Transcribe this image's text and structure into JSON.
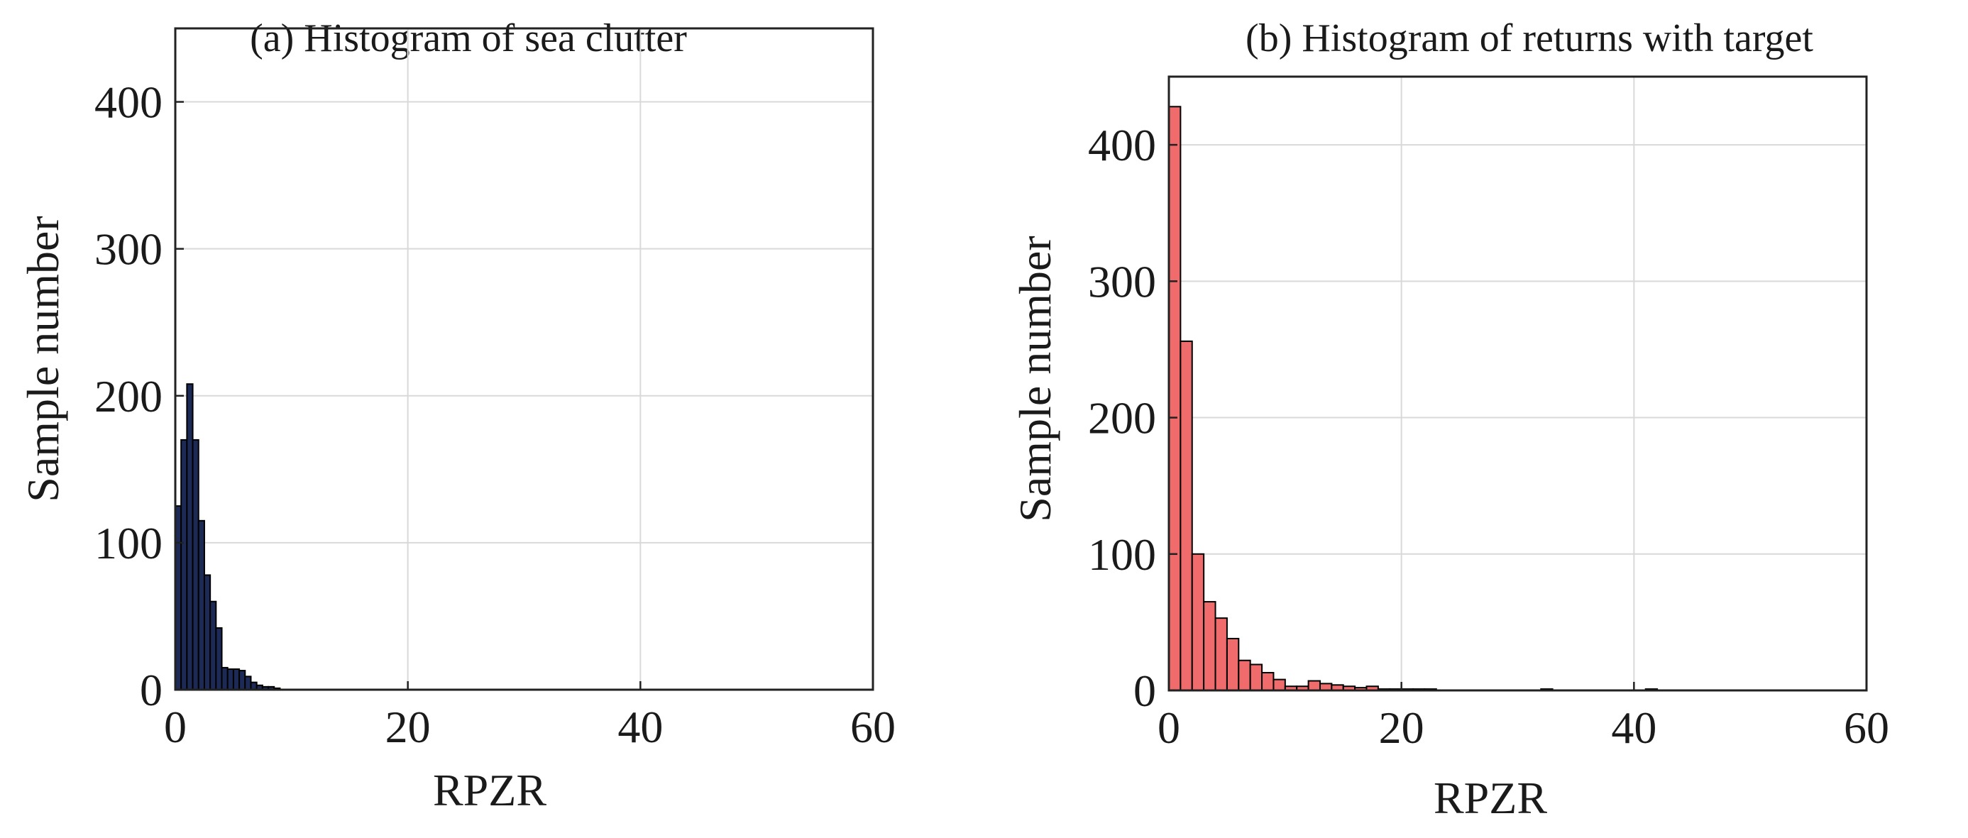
{
  "chart_data": [
    {
      "type": "bar",
      "title": "(a) Histogram of sea clutter",
      "xlabel": "RPZR",
      "ylabel": "Sample number",
      "xlim": [
        0,
        60
      ],
      "ylim": [
        0,
        450
      ],
      "xticks": [
        0,
        20,
        40,
        60
      ],
      "yticks": [
        0,
        100,
        200,
        300,
        400
      ],
      "grid": true,
      "bar_color": "#1c2a55",
      "bar_edge_color": "#000000",
      "bin_width": 0.5,
      "bin_start": 0,
      "values": [
        125,
        170,
        208,
        170,
        115,
        78,
        60,
        42,
        15,
        14,
        14,
        13,
        9,
        5,
        3,
        2,
        2,
        1
      ]
    },
    {
      "type": "bar",
      "title": "(b) Histogram of returns with target",
      "xlabel": "RPZR",
      "ylabel": "Sample number",
      "xlim": [
        0,
        60
      ],
      "ylim": [
        0,
        450
      ],
      "xticks": [
        0,
        20,
        40,
        60
      ],
      "yticks": [
        0,
        100,
        200,
        300,
        400
      ],
      "grid": true,
      "bar_color": "#f06b6b",
      "bar_edge_color": "#000000",
      "bin_width": 1,
      "bin_start": 0,
      "values": [
        428,
        256,
        100,
        65,
        53,
        38,
        22,
        19,
        13,
        8,
        3,
        3,
        7,
        5,
        4,
        3,
        2,
        3,
        1,
        1,
        1,
        1,
        1,
        0,
        0,
        0,
        0,
        0,
        0,
        0,
        0,
        0,
        1,
        0,
        0,
        0,
        0,
        0,
        0,
        0,
        0,
        1,
        0
      ]
    }
  ]
}
